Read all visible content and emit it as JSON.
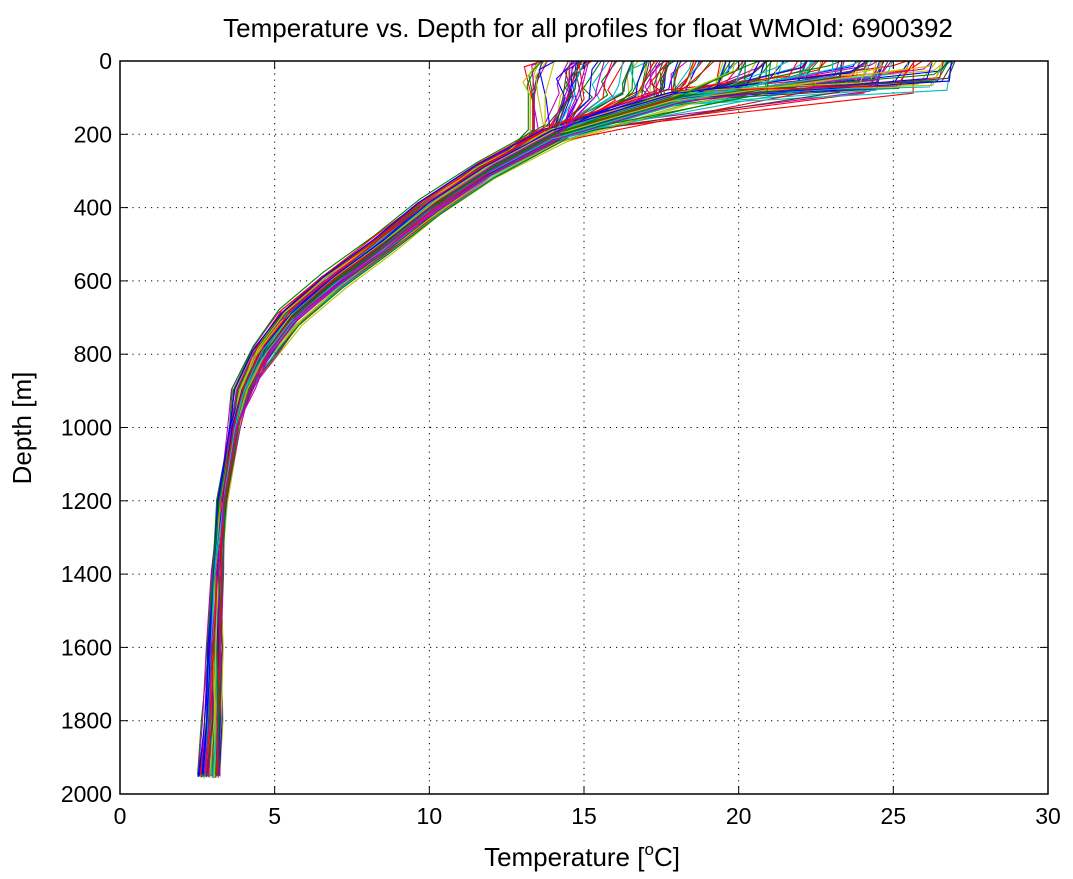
{
  "chart_data": {
    "type": "line",
    "title": "Temperature vs. Depth for all profiles for float WMOId: 6900392",
    "xlabel_prefix": "Temperature [",
    "xlabel_superscript": "o",
    "xlabel_suffix": "C]",
    "ylabel": "Depth [m]",
    "xlim": [
      0,
      30
    ],
    "ylim": [
      0,
      2000
    ],
    "y_reversed": true,
    "grid": true,
    "grid_style": "dotted",
    "x_ticks": [
      "0",
      "5",
      "10",
      "15",
      "20",
      "25",
      "30"
    ],
    "y_ticks": [
      "0",
      "200",
      "400",
      "600",
      "800",
      "1000",
      "1200",
      "1400",
      "1600",
      "1800",
      "2000"
    ],
    "series_colors": [
      "#0000ff",
      "#008000",
      "#ff0000",
      "#00bfbf",
      "#bf00bf",
      "#bfbf00",
      "#404040"
    ],
    "representative_profile": {
      "depth_m": [
        0,
        40,
        100,
        200,
        300,
        400,
        500,
        600,
        700,
        800,
        900,
        1000,
        1200,
        1400,
        1600,
        1800,
        1950
      ],
      "temperature_c": [
        22.5,
        21.0,
        18.0,
        14.0,
        11.8,
        10.0,
        8.5,
        6.9,
        5.5,
        4.6,
        4.0,
        3.7,
        3.3,
        3.1,
        3.0,
        2.9,
        2.8
      ]
    },
    "surface_temperature_range_c": [
      13.5,
      27.0
    ],
    "bottom_temperature_range_c": [
      2.6,
      3.2
    ],
    "profile_count_estimate": 180
  }
}
